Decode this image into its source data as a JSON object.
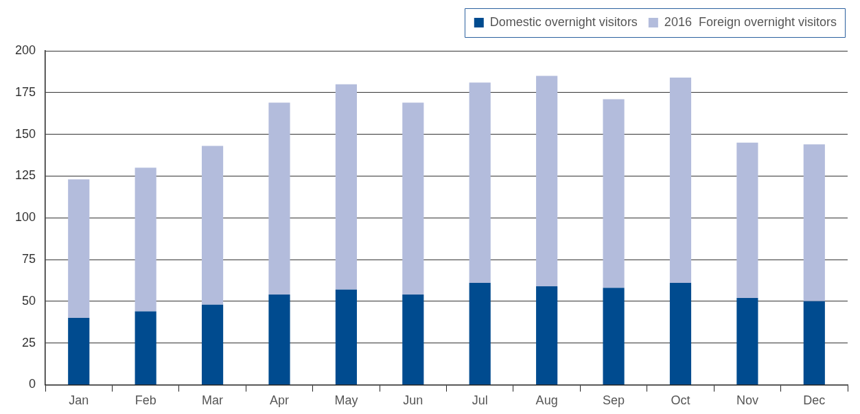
{
  "chart_data": {
    "type": "bar",
    "stacked": true,
    "categories": [
      "Jan",
      "Feb",
      "Mar",
      "Apr",
      "May",
      "Jun",
      "Jul",
      "Aug",
      "Sep",
      "Oct",
      "Nov",
      "Dec"
    ],
    "series": [
      {
        "name": "Domestic overnight visitors",
        "color": "#004b8f",
        "values": [
          40,
          44,
          48,
          54,
          57,
          54,
          61,
          59,
          58,
          61,
          52,
          50
        ]
      },
      {
        "name": "2016  Foreign overnight visitors",
        "color": "#b3bcdc",
        "values": [
          83,
          86,
          95,
          115,
          123,
          115,
          120,
          126,
          113,
          123,
          93,
          94
        ]
      }
    ],
    "ylim": [
      0,
      200
    ],
    "yticks": [
      0,
      25,
      50,
      75,
      100,
      125,
      150,
      175,
      200
    ],
    "grid": "y",
    "legend": "top right"
  }
}
